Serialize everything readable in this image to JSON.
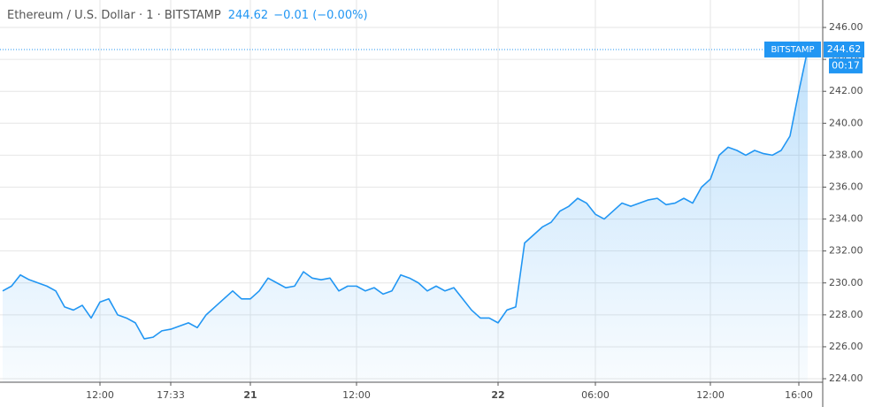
{
  "chart_data": {
    "type": "line",
    "title": "Ethereum / U.S. Dollar · 1 · BITSTAMP",
    "change": "−0.01 (−0.00%)",
    "price_line_label": "BITSTAMP",
    "countdown": "00:17",
    "color": "#2196f3",
    "grid": true,
    "categories": [
      null,
      null,
      null,
      null,
      null,
      null,
      null,
      null,
      null,
      null,
      null,
      "12:00",
      null,
      null,
      null,
      null,
      null,
      null,
      null,
      "17:33",
      null,
      null,
      null,
      null,
      null,
      null,
      null,
      null,
      "21",
      null,
      null,
      null,
      null,
      null,
      null,
      null,
      null,
      null,
      null,
      null,
      "12:00",
      null,
      null,
      null,
      null,
      null,
      null,
      null,
      null,
      null,
      null,
      null,
      null,
      null,
      null,
      null,
      "22",
      null,
      null,
      null,
      null,
      null,
      null,
      null,
      null,
      null,
      null,
      "06:00",
      null,
      null,
      null,
      null,
      null,
      null,
      null,
      null,
      null,
      null,
      null,
      null,
      "12:00",
      null,
      null,
      null,
      null,
      null,
      null,
      null,
      null,
      null,
      "16:00",
      null
    ],
    "values": [
      229.5,
      229.8,
      230.5,
      230.2,
      230.0,
      229.8,
      229.5,
      228.5,
      228.3,
      228.6,
      227.8,
      228.8,
      229.0,
      228.0,
      227.8,
      227.5,
      226.5,
      226.6,
      227.0,
      227.1,
      227.3,
      227.5,
      227.2,
      228.0,
      228.5,
      229.0,
      229.5,
      229.0,
      229.0,
      229.5,
      230.3,
      230.0,
      229.7,
      229.8,
      230.7,
      230.3,
      230.2,
      230.3,
      229.5,
      229.8,
      229.8,
      229.5,
      229.7,
      229.3,
      229.5,
      230.5,
      230.3,
      230.0,
      229.5,
      229.8,
      229.5,
      229.7,
      229.0,
      228.3,
      227.8,
      227.8,
      227.5,
      228.3,
      228.5,
      232.5,
      233.0,
      233.5,
      233.8,
      234.5,
      234.8,
      235.3,
      235.0,
      234.3,
      234.0,
      234.5,
      235.0,
      234.8,
      235.0,
      235.2,
      235.3,
      234.9,
      235.0,
      235.3,
      235.0,
      236.0,
      236.5,
      238.0,
      238.5,
      238.3,
      238.0,
      238.3,
      238.1,
      238.0,
      238.3,
      239.2,
      242.0,
      244.62
    ],
    "ylim": [
      223.78,
      247.72
    ],
    "yticks": [
      {
        "value": 224,
        "label": "224.00"
      },
      {
        "value": 226,
        "label": "226.00"
      },
      {
        "value": 228,
        "label": "228.00"
      },
      {
        "value": 230,
        "label": "230.00"
      },
      {
        "value": 232,
        "label": "232.00"
      },
      {
        "value": 234,
        "label": "234.00"
      },
      {
        "value": 236,
        "label": "236.00"
      },
      {
        "value": 238,
        "label": "238.00"
      },
      {
        "value": 240,
        "label": "240.00"
      },
      {
        "value": 242,
        "label": "242.00"
      },
      {
        "value": 244,
        "label": "244.00"
      },
      {
        "value": 246,
        "label": "246.00"
      }
    ]
  }
}
